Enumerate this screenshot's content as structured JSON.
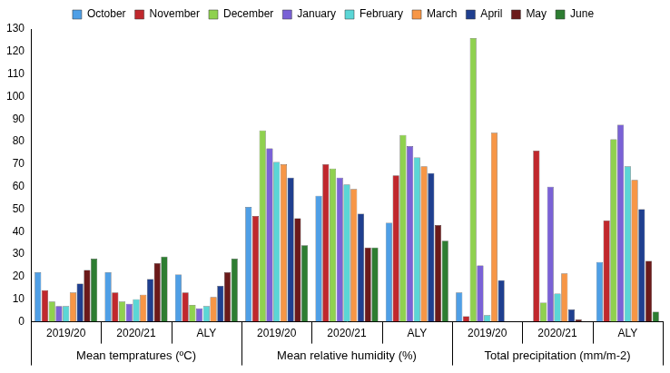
{
  "chart_data": {
    "type": "bar",
    "categories": [
      "2019/20",
      "2020/21",
      "ALY",
      "2019/20",
      "2020/21",
      "ALY",
      "2019/20",
      "2020/21",
      "ALY"
    ],
    "groups": [
      {
        "label": "Mean tempratures (ºC)",
        "categories": [
          "2019/20",
          "2020/21",
          "ALY"
        ]
      },
      {
        "label": "Mean relative humidity (%)",
        "categories": [
          "2019/20",
          "2020/21",
          "ALY"
        ]
      },
      {
        "label": "Total precipitation (mm/m-2)",
        "categories": [
          "2019/20",
          "2020/21",
          "ALY"
        ]
      }
    ],
    "series": [
      {
        "name": "October",
        "color": "#4f9fe6",
        "values": [
          22,
          22,
          21,
          51,
          56,
          44,
          13,
          0,
          26.5
        ]
      },
      {
        "name": "November",
        "color": "#c0282d",
        "values": [
          14,
          13,
          13,
          47,
          70,
          65,
          2.5,
          76,
          45
        ]
      },
      {
        "name": "December",
        "color": "#8fd14f",
        "values": [
          9,
          9,
          7.5,
          85,
          68,
          83,
          126,
          8.5,
          81
        ]
      },
      {
        "name": "January",
        "color": "#7a62d6",
        "values": [
          7,
          8,
          6,
          77,
          64,
          78,
          25,
          60,
          87.5
        ]
      },
      {
        "name": "February",
        "color": "#5bd6d6",
        "values": [
          7,
          10,
          7,
          71,
          61,
          73,
          3,
          12.5,
          69
        ]
      },
      {
        "name": "March",
        "color": "#f79646",
        "values": [
          13,
          12,
          11,
          70,
          59,
          69,
          84,
          21.5,
          63
        ]
      },
      {
        "name": "April",
        "color": "#1f3f8f",
        "values": [
          17,
          19,
          16,
          64,
          48,
          66,
          18.5,
          5.5,
          50
        ]
      },
      {
        "name": "May",
        "color": "#6b1a1a",
        "values": [
          23,
          26,
          22,
          46,
          33,
          43,
          0,
          1,
          27
        ]
      },
      {
        "name": "June",
        "color": "#2e7d32",
        "values": [
          28,
          29,
          28,
          34,
          33,
          36,
          0,
          0,
          4.5
        ]
      }
    ],
    "ylim": [
      0,
      130
    ],
    "yticks": [
      0,
      10,
      20,
      30,
      40,
      50,
      60,
      70,
      80,
      90,
      100,
      110,
      120,
      130
    ],
    "grid": false,
    "legend": "top"
  }
}
